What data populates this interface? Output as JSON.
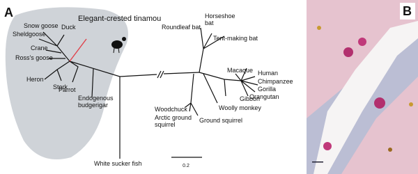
{
  "panels": [
    {
      "label": "A",
      "highlight": "Elegant-crested tinamou",
      "taxa": [
        "Snow goose",
        "Duck",
        "Sheldgoose",
        "Crane",
        "Ross's goose",
        "Heron",
        "Stork",
        "Parrot",
        "Roundleaf bat",
        "Tent-making bat",
        "Macaque",
        "Human",
        "Chimpanzee",
        "Gorilla",
        "Gibbon",
        "Orangutan",
        "Woolly monkey",
        "Woodchuck",
        "Ground squirrel",
        "White sucker fish"
      ],
      "multiline_taxa": [
        [
          "Endogenous",
          "budgerigar"
        ],
        [
          "Horseshoe",
          "bat"
        ],
        [
          "Arctic ground",
          "squirrel"
        ]
      ],
      "scale_bar": "0.2"
    },
    {
      "label": "B"
    }
  ]
}
